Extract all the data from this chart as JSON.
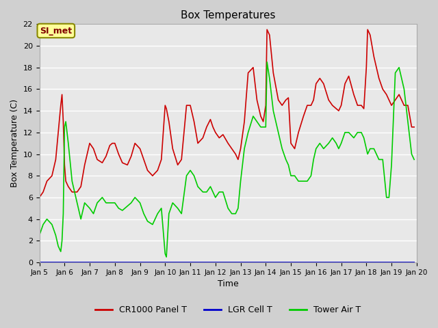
{
  "title": "Box Temperatures",
  "xlabel": "Time",
  "ylabel": "Box Temperature (C)",
  "ylim": [
    0,
    22
  ],
  "xlim_start": 5,
  "xlim_end": 20,
  "x_tick_labels": [
    "Jan 5",
    "Jan 6",
    "Jan 7",
    "Jan 8",
    "Jan 9",
    "Jan 10",
    "Jan 11",
    "Jan 12",
    "Jan 13",
    "Jan 14",
    "Jan 15",
    "Jan 16",
    "Jan 17",
    "Jan 18",
    "Jan 19",
    "Jan 20"
  ],
  "annotation_text": "SI_met",
  "annotation_bg": "#ffff99",
  "annotation_fg": "#800000",
  "cr1000_color": "#cc0000",
  "lgr_color": "#0000cc",
  "tower_color": "#00cc00",
  "cr1000_label": "CR1000 Panel T",
  "lgr_label": "LGR Cell T",
  "tower_label": "Tower Air T",
  "cr1000_data_x": [
    5.0,
    5.15,
    5.3,
    5.5,
    5.65,
    5.75,
    5.85,
    5.9,
    5.95,
    6.0,
    6.05,
    6.15,
    6.3,
    6.5,
    6.65,
    6.8,
    7.0,
    7.15,
    7.3,
    7.5,
    7.65,
    7.8,
    7.9,
    8.0,
    8.15,
    8.3,
    8.5,
    8.65,
    8.8,
    9.0,
    9.15,
    9.3,
    9.5,
    9.7,
    9.85,
    10.0,
    10.05,
    10.15,
    10.3,
    10.5,
    10.65,
    10.85,
    11.0,
    11.15,
    11.3,
    11.5,
    11.65,
    11.8,
    11.9,
    12.0,
    12.15,
    12.3,
    12.5,
    12.65,
    12.8,
    12.9,
    13.0,
    13.15,
    13.3,
    13.5,
    13.65,
    13.8,
    13.9,
    14.0,
    14.05,
    14.15,
    14.3,
    14.5,
    14.65,
    14.8,
    14.9,
    15.0,
    15.15,
    15.3,
    15.5,
    15.65,
    15.8,
    15.9,
    16.0,
    16.15,
    16.3,
    16.5,
    16.65,
    16.8,
    16.9,
    17.0,
    17.15,
    17.3,
    17.5,
    17.65,
    17.8,
    17.9,
    18.0,
    18.05,
    18.15,
    18.3,
    18.5,
    18.65,
    18.8,
    18.9,
    19.0,
    19.15,
    19.3,
    19.5,
    19.65,
    19.8,
    19.9
  ],
  "cr1000_data_y": [
    6.0,
    6.5,
    7.5,
    8.0,
    9.5,
    12.0,
    14.5,
    15.5,
    13.0,
    9.0,
    7.5,
    7.0,
    6.5,
    6.5,
    7.0,
    9.0,
    11.0,
    10.5,
    9.5,
    9.2,
    9.8,
    10.8,
    11.0,
    11.0,
    10.0,
    9.2,
    9.0,
    9.8,
    11.0,
    10.5,
    9.5,
    8.5,
    8.0,
    8.5,
    9.5,
    14.5,
    14.2,
    13.0,
    10.5,
    9.0,
    9.5,
    14.5,
    14.5,
    13.0,
    11.0,
    11.5,
    12.5,
    13.2,
    12.5,
    12.0,
    11.5,
    11.8,
    11.0,
    10.5,
    10.0,
    9.5,
    10.5,
    13.0,
    17.5,
    18.0,
    15.0,
    13.5,
    13.0,
    14.5,
    21.5,
    21.0,
    17.5,
    15.0,
    14.5,
    15.0,
    15.2,
    11.0,
    10.5,
    12.0,
    13.5,
    14.5,
    14.5,
    15.0,
    16.5,
    17.0,
    16.5,
    15.0,
    14.5,
    14.2,
    14.0,
    14.5,
    16.5,
    17.2,
    15.5,
    14.5,
    14.5,
    14.2,
    18.0,
    21.5,
    21.0,
    19.0,
    17.0,
    16.0,
    15.5,
    15.0,
    14.5,
    15.0,
    15.5,
    14.5,
    14.5,
    12.5,
    12.5
  ],
  "tower_data_x": [
    5.0,
    5.15,
    5.3,
    5.5,
    5.65,
    5.75,
    5.85,
    5.9,
    5.95,
    6.0,
    6.05,
    6.15,
    6.3,
    6.5,
    6.65,
    6.8,
    7.0,
    7.15,
    7.3,
    7.5,
    7.65,
    7.8,
    7.9,
    8.0,
    8.15,
    8.3,
    8.5,
    8.65,
    8.8,
    9.0,
    9.15,
    9.3,
    9.5,
    9.7,
    9.85,
    10.0,
    10.05,
    10.15,
    10.3,
    10.5,
    10.65,
    10.85,
    11.0,
    11.15,
    11.3,
    11.5,
    11.65,
    11.8,
    11.9,
    12.0,
    12.15,
    12.3,
    12.5,
    12.65,
    12.8,
    12.9,
    13.0,
    13.15,
    13.3,
    13.5,
    13.65,
    13.8,
    13.9,
    14.0,
    14.05,
    14.15,
    14.3,
    14.5,
    14.65,
    14.8,
    14.9,
    15.0,
    15.15,
    15.3,
    15.5,
    15.65,
    15.8,
    15.9,
    16.0,
    16.15,
    16.3,
    16.5,
    16.65,
    16.8,
    16.9,
    17.0,
    17.15,
    17.3,
    17.5,
    17.65,
    17.8,
    17.9,
    18.0,
    18.05,
    18.15,
    18.3,
    18.5,
    18.65,
    18.8,
    18.9,
    19.0,
    19.15,
    19.3,
    19.5,
    19.65,
    19.8,
    19.9
  ],
  "tower_data_y": [
    2.5,
    3.5,
    4.0,
    3.5,
    2.5,
    1.5,
    1.0,
    2.0,
    4.5,
    12.5,
    13.0,
    11.0,
    7.5,
    5.5,
    4.0,
    5.5,
    5.0,
    4.5,
    5.5,
    6.0,
    5.5,
    5.5,
    5.5,
    5.5,
    5.0,
    4.8,
    5.2,
    5.5,
    6.0,
    5.5,
    4.5,
    3.8,
    3.5,
    4.5,
    5.0,
    0.8,
    0.5,
    4.5,
    5.5,
    5.0,
    4.5,
    8.0,
    8.5,
    8.0,
    7.0,
    6.5,
    6.5,
    7.0,
    6.5,
    6.0,
    6.5,
    6.5,
    5.0,
    4.5,
    4.5,
    5.0,
    7.5,
    10.5,
    12.0,
    13.5,
    13.0,
    12.5,
    12.5,
    12.5,
    18.5,
    17.0,
    14.0,
    12.0,
    10.5,
    9.5,
    9.0,
    8.0,
    8.0,
    7.5,
    7.5,
    7.5,
    8.0,
    9.5,
    10.5,
    11.0,
    10.5,
    11.0,
    11.5,
    11.0,
    10.5,
    11.0,
    12.0,
    12.0,
    11.5,
    12.0,
    12.0,
    11.5,
    10.5,
    10.0,
    10.5,
    10.5,
    9.5,
    9.5,
    6.0,
    6.0,
    9.0,
    17.5,
    18.0,
    16.0,
    13.0,
    10.0,
    9.5
  ],
  "lgr_data_x": [
    5.0,
    19.9
  ],
  "lgr_data_y": [
    0.0,
    0.0
  ]
}
